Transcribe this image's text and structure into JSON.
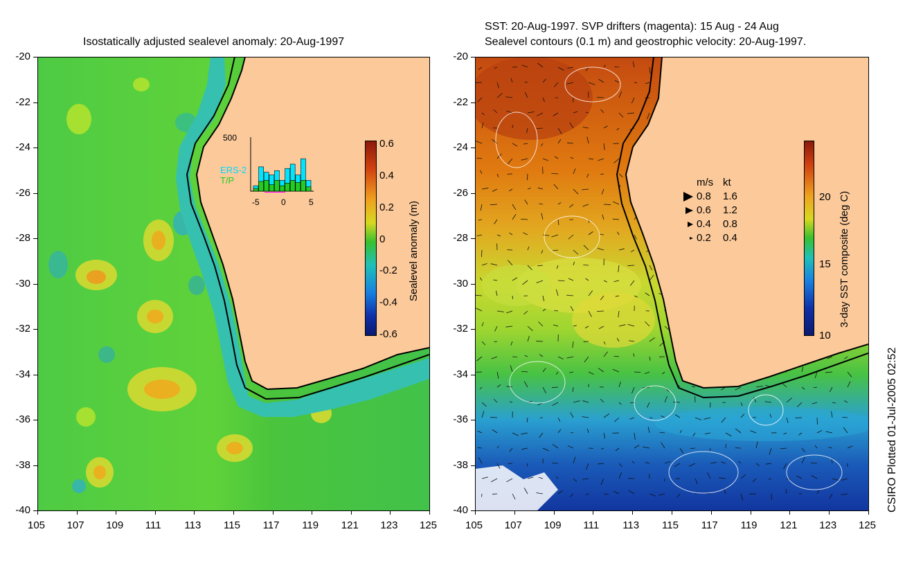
{
  "left_panel": {
    "title": "Isostatically adjusted sealevel anomaly: 20-Aug-1997",
    "y_ticks": [
      "-20",
      "-22",
      "-24",
      "-26",
      "-28",
      "-30",
      "-32",
      "-34",
      "-36",
      "-38",
      "-40"
    ],
    "x_ticks": [
      "105",
      "107",
      "109",
      "111",
      "113",
      "115",
      "117",
      "119",
      "121",
      "123",
      "125"
    ],
    "colorbar": {
      "label": "Sealevel anomaly (m)",
      "ticks": [
        "0.6",
        "0.4",
        "0.2",
        "0",
        "-0.2",
        "-0.4",
        "-0.6"
      ]
    },
    "inset": {
      "ymax_label": "500",
      "legend_ers": "ERS-2",
      "legend_tp": "T/P",
      "x_ticks": [
        "-5",
        "0",
        "5"
      ],
      "ers_color": "#00e5ff",
      "tp_color": "#22cc22",
      "bars_total": [
        0.1,
        0.45,
        0.35,
        0.3,
        0.38,
        0.2,
        0.42,
        0.5,
        0.3,
        0.6,
        0.2
      ],
      "bars_tp": [
        0.05,
        0.18,
        0.2,
        0.12,
        0.2,
        0.1,
        0.15,
        0.2,
        0.16,
        0.2,
        0.08
      ]
    }
  },
  "right_panel": {
    "title_line1": "SST: 20-Aug-1997. SVP drifters (magenta): 15 Aug - 24 Aug",
    "title_line2": "Sealevel contours (0.1 m) and geostrophic velocity: 20-Aug-1997.",
    "y_ticks": [
      "-20",
      "-22",
      "-24",
      "-26",
      "-28",
      "-30",
      "-32",
      "-34",
      "-36",
      "-38",
      "-40"
    ],
    "x_ticks": [
      "105",
      "107",
      "109",
      "111",
      "113",
      "115",
      "117",
      "119",
      "121",
      "123",
      "125"
    ],
    "colorbar": {
      "label": "3-day SST composite (deg C)",
      "ticks": [
        "20",
        "15",
        "10"
      ]
    },
    "velocity_legend": {
      "header_ms": "m/s",
      "header_kt": "kt",
      "rows": [
        {
          "ms": "0.8",
          "kt": "1.6"
        },
        {
          "ms": "0.6",
          "kt": "1.2"
        },
        {
          "ms": "0.4",
          "kt": "0.8"
        },
        {
          "ms": "0.2",
          "kt": "0.4"
        }
      ]
    }
  },
  "footer": "CSIRO Plotted 01-Jul-2005 02:52",
  "colors": {
    "land": "#fbc99a",
    "coast": "#000000"
  }
}
